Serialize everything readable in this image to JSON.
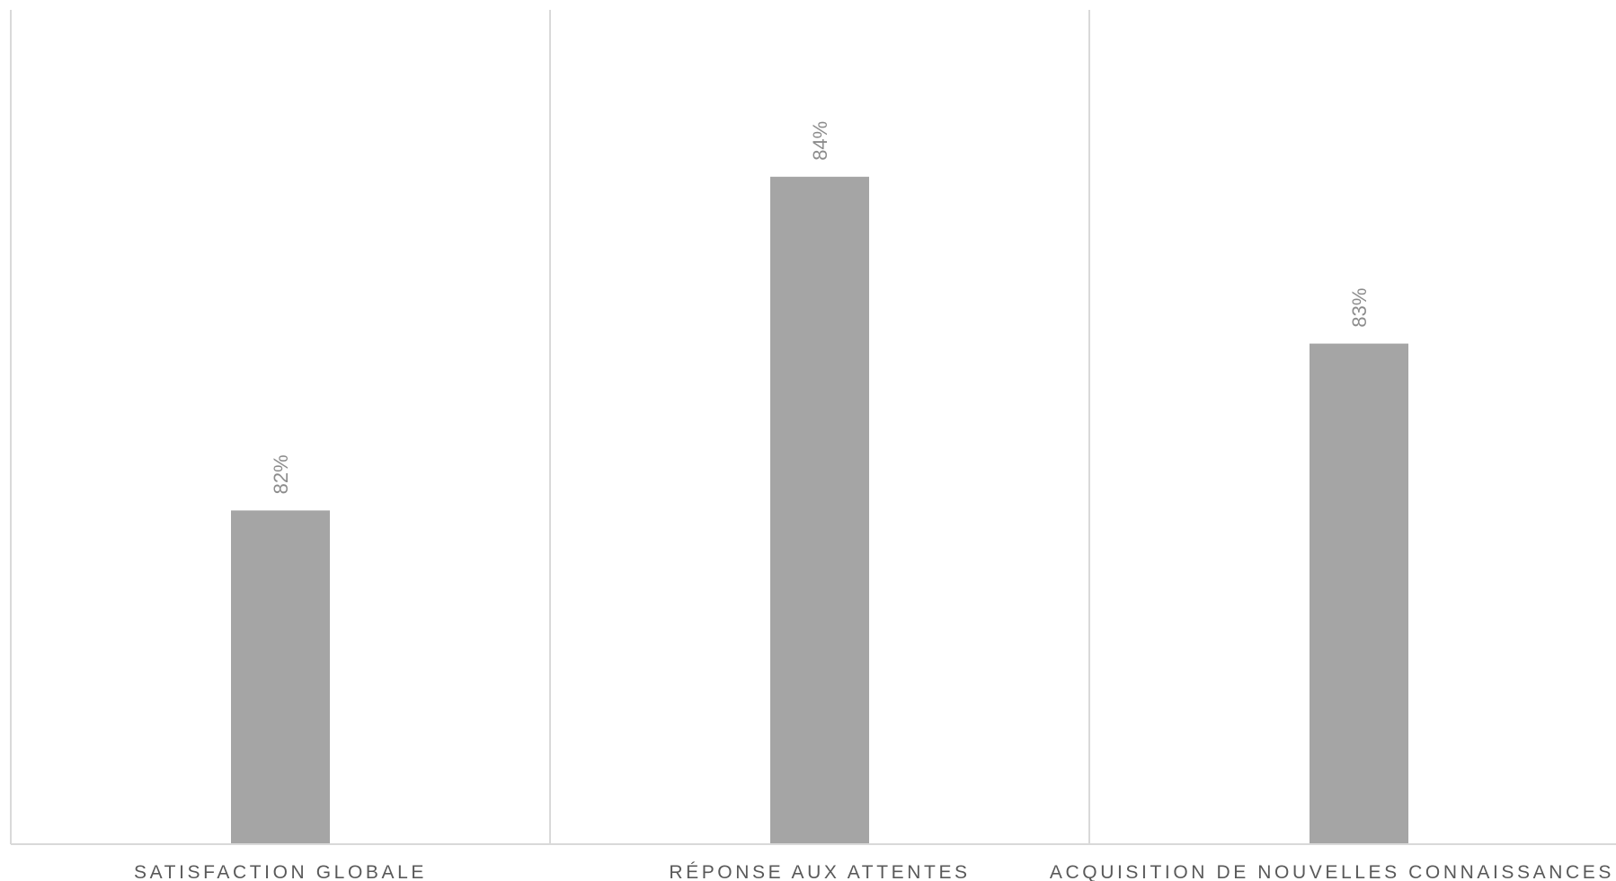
{
  "chart_data": {
    "type": "bar",
    "categories": [
      "SATISFACTION GLOBALE",
      "RÉPONSE AUX ATTENTES",
      "ACQUISITION DE NOUVELLES CONNAISSANCES"
    ],
    "values": [
      82,
      84,
      83
    ],
    "value_labels": [
      "82%",
      "84%",
      "83%"
    ],
    "title": "",
    "xlabel": "",
    "ylabel": "",
    "ylim": [
      80,
      85
    ],
    "grid": "vertical separators between categories",
    "legend": "none",
    "bar_color": "#a5a5a5",
    "axis_color": "#d9d9d9",
    "value_label_color": "#8c8c8c",
    "category_label_color": "#595959"
  }
}
